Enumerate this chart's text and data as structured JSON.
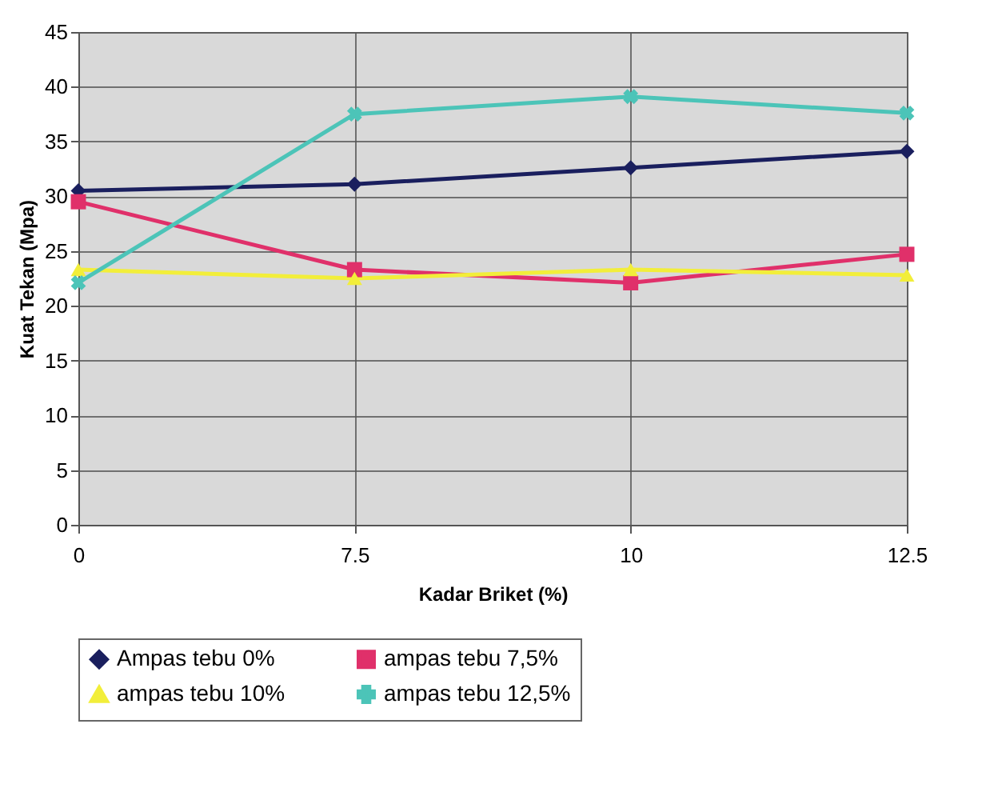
{
  "chart_data": {
    "type": "line",
    "xlabel": "Kadar Briket (%)",
    "ylabel": "Kuat Tekan (Mpa)",
    "categories": [
      "0",
      "7.5",
      "10",
      "12.5"
    ],
    "ylim": [
      0,
      45
    ],
    "yticks": [
      0,
      5,
      10,
      15,
      20,
      25,
      30,
      35,
      40,
      45
    ],
    "grid": true,
    "legend": "bottom",
    "series": [
      {
        "name": "Ampas tebu 0%",
        "color": "#1a1f5e",
        "marker": "diamond",
        "values": [
          30.5,
          31.1,
          32.6,
          34.1
        ]
      },
      {
        "name": "ampas tebu  7,5%",
        "color": "#e0306a",
        "marker": "square",
        "values": [
          29.5,
          23.3,
          22.1,
          24.7
        ]
      },
      {
        "name": "ampas tebu 10%",
        "color": "#f2ee3a",
        "marker": "triangle",
        "values": [
          23.3,
          22.5,
          23.3,
          22.8
        ]
      },
      {
        "name": "ampas tebu 12,5%",
        "color": "#4cc4b8",
        "marker": "cross",
        "values": [
          22.1,
          37.5,
          39.1,
          37.6
        ]
      }
    ]
  }
}
